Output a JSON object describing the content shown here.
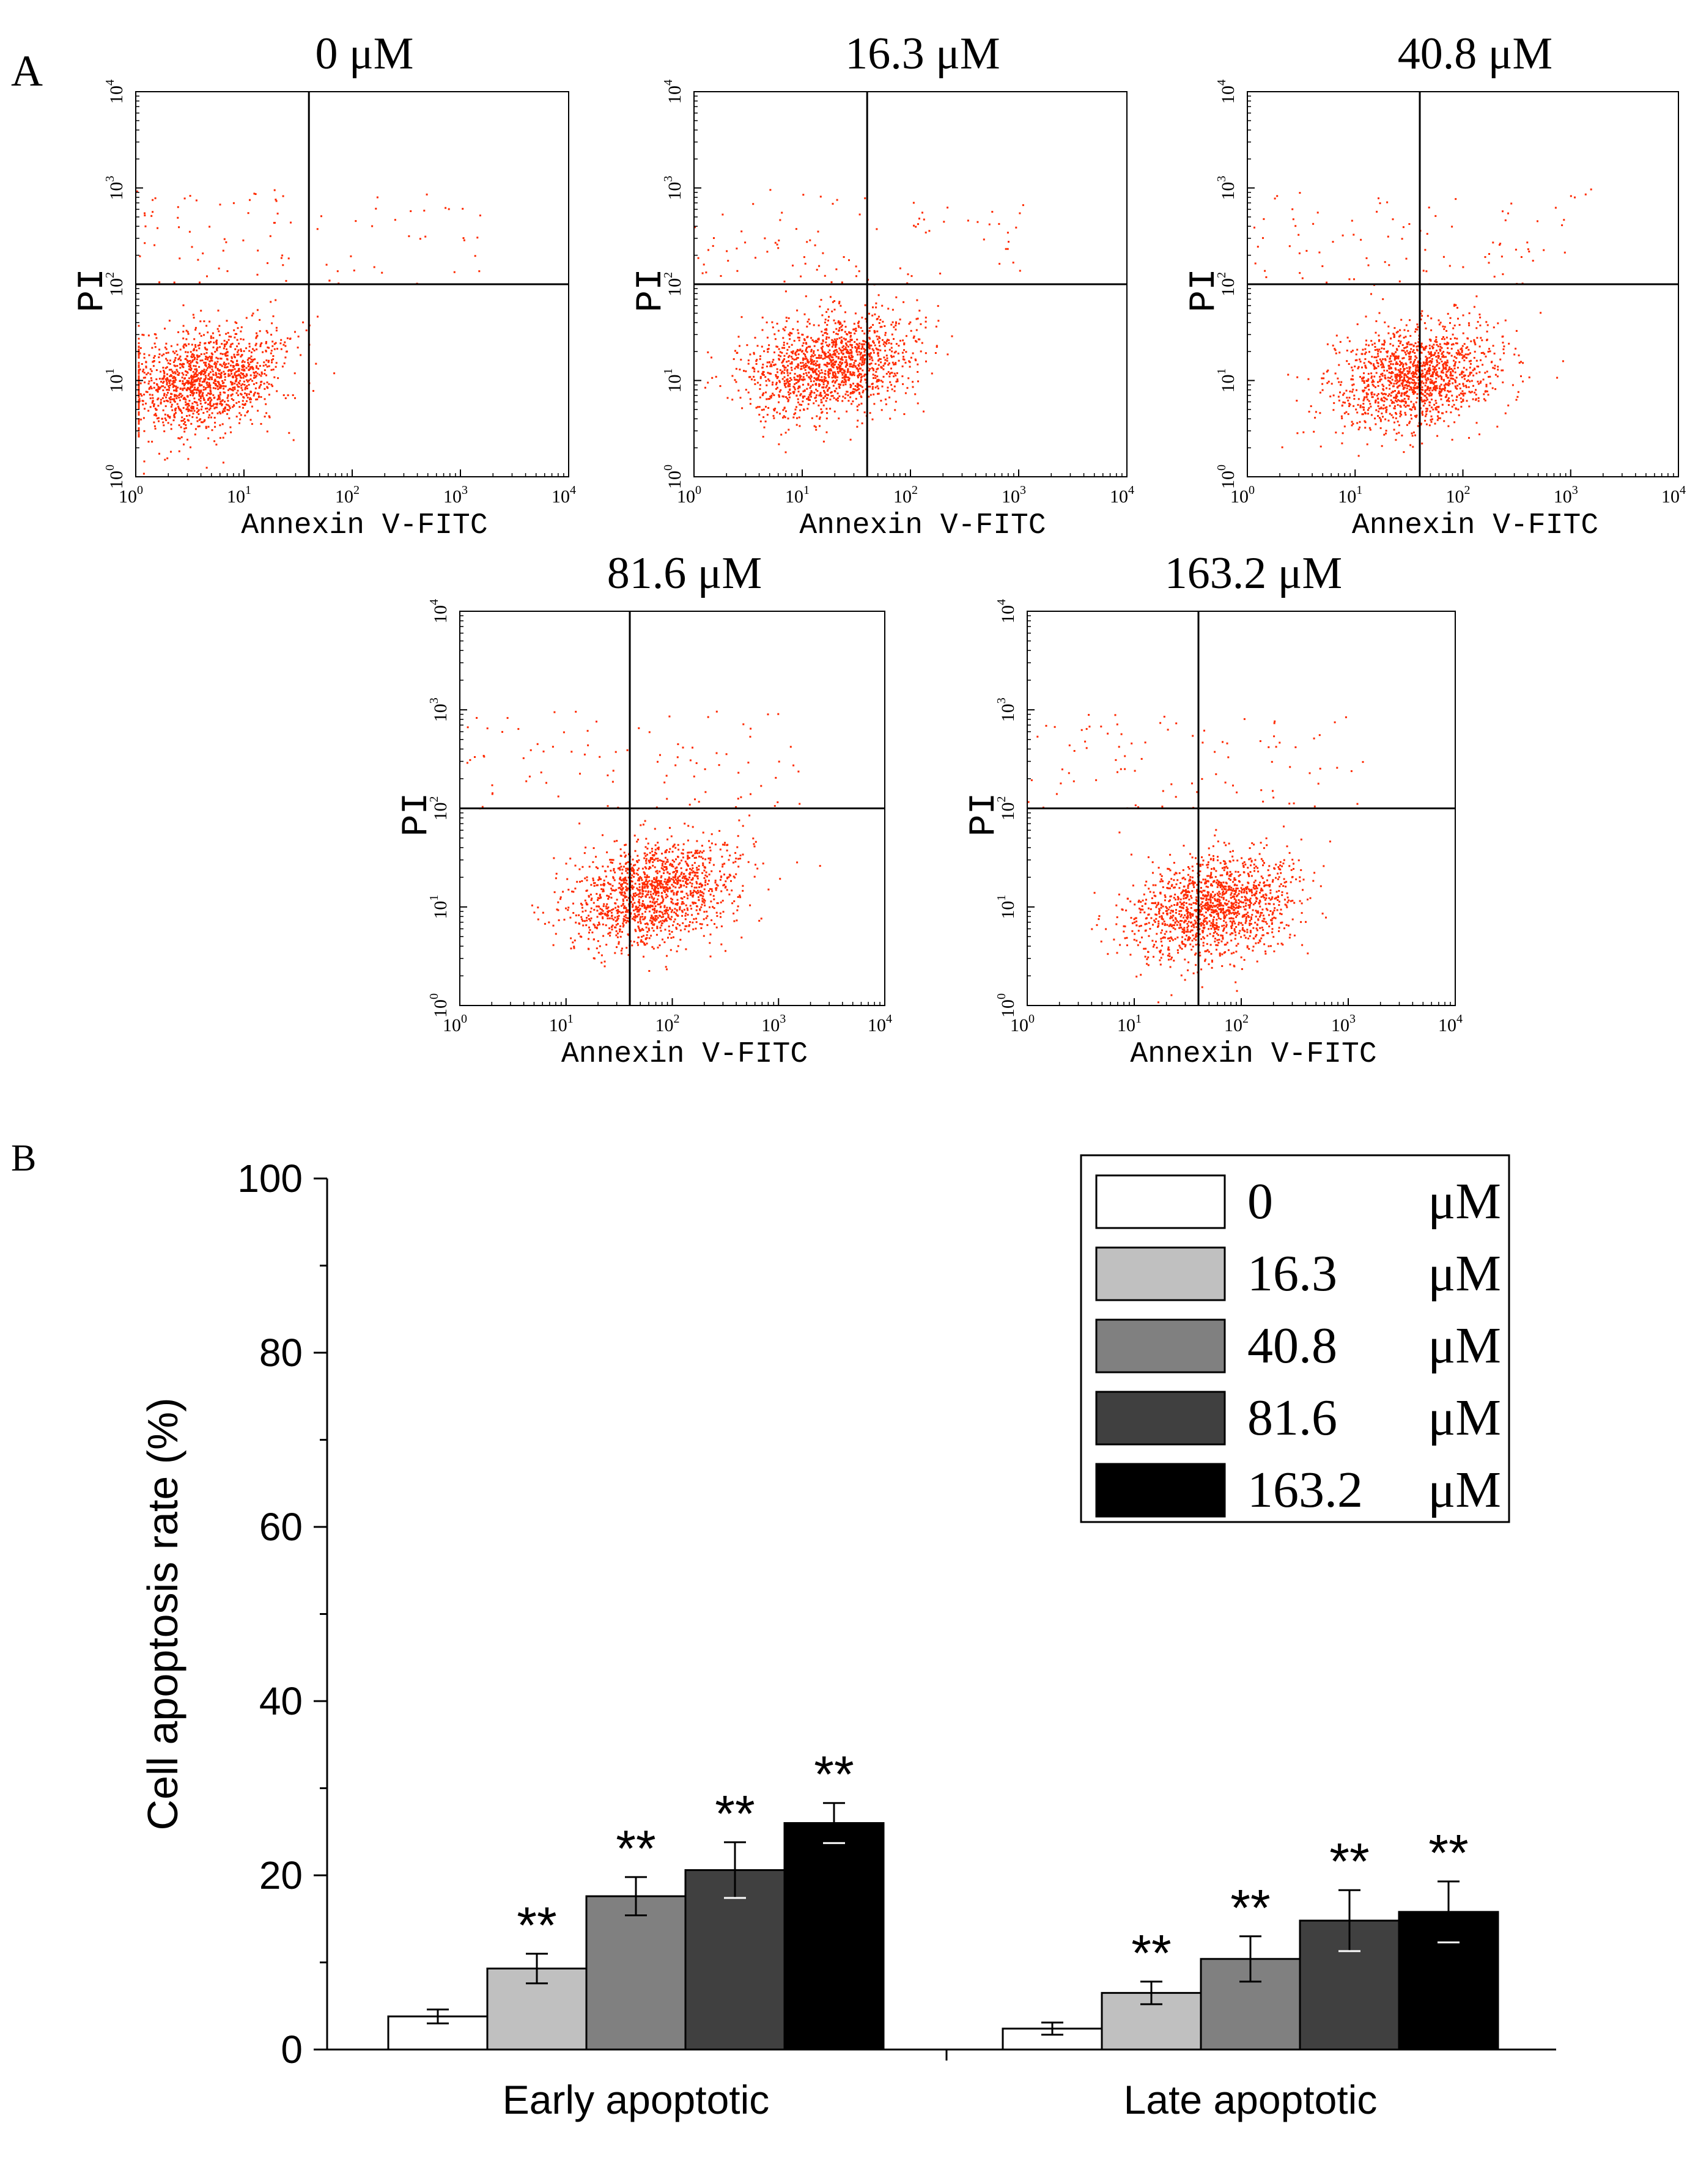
{
  "panel_a": {
    "label": "A",
    "plots": [
      {
        "title": "0 μM",
        "xlabel": "Annexin V-FITC",
        "ylabel": "PI",
        "center": [
          0.6,
          1.0
        ]
      },
      {
        "title": "16.3 μM",
        "xlabel": "Annexin V-FITC",
        "ylabel": "PI",
        "center": [
          1.25,
          1.15
        ]
      },
      {
        "title": "40.8 μM",
        "xlabel": "Annexin V-FITC",
        "ylabel": "PI",
        "center": [
          1.55,
          1.05
        ]
      },
      {
        "title": "81.6 μM",
        "xlabel": "Annexin V-FITC",
        "ylabel": "PI",
        "center": [
          1.8,
          1.15
        ]
      },
      {
        "title": "163.2 μM",
        "xlabel": "Annexin V-FITC",
        "ylabel": "PI",
        "center": [
          1.75,
          1.0
        ]
      }
    ],
    "ticks": [
      "10",
      "10",
      "10",
      "10",
      "10"
    ],
    "exponents": [
      "0",
      "1",
      "2",
      "3",
      "4"
    ],
    "gate_x": 1.6,
    "gate_y": 2.0
  },
  "panel_b": {
    "label": "B"
  },
  "chart_data": [
    {
      "type": "scatter",
      "description": "Flow cytometry Annexin V-FITC / PI dot plots (panel A)",
      "x_axis": "Annexin V-FITC (log, 10^0–10^4)",
      "y_axis": "PI (log, 10^0–10^4)",
      "xlim": [
        0,
        4
      ],
      "ylim": [
        0,
        4
      ],
      "series": [
        {
          "name": "0 μM"
        },
        {
          "name": "16.3 μM"
        },
        {
          "name": "40.8 μM"
        },
        {
          "name": "81.6 μM"
        },
        {
          "name": "163.2 μM"
        }
      ]
    },
    {
      "type": "bar",
      "title": "",
      "xlabel": "",
      "ylabel": "Cell apoptosis rate (%)",
      "ylim": [
        0,
        100
      ],
      "yticks": [
        "0",
        "20",
        "40",
        "60",
        "80",
        "100"
      ],
      "categories": [
        "Early apoptotic",
        "Late apoptotic"
      ],
      "series": [
        {
          "name": "0",
          "unit": "μM",
          "color": "#ffffff",
          "values": [
            3.8,
            2.4
          ],
          "errors": [
            0.8,
            0.7
          ],
          "sig": [
            "",
            ""
          ]
        },
        {
          "name": "16.3",
          "unit": "μM",
          "color": "#c0c0c0",
          "values": [
            9.3,
            6.5
          ],
          "errors": [
            1.7,
            1.3
          ],
          "sig": [
            "**",
            "**"
          ]
        },
        {
          "name": "40.8",
          "unit": "μM",
          "color": "#808080",
          "values": [
            17.6,
            10.4
          ],
          "errors": [
            2.2,
            2.6
          ],
          "sig": [
            "**",
            "**"
          ]
        },
        {
          "name": "81.6",
          "unit": "μM",
          "color": "#404040",
          "values": [
            20.6,
            14.8
          ],
          "errors": [
            3.2,
            3.5
          ],
          "sig": [
            "**",
            "**"
          ]
        },
        {
          "name": "163.2",
          "unit": "μM",
          "color": "#000000",
          "values": [
            26.0,
            15.8
          ],
          "errors": [
            2.3,
            3.5
          ],
          "sig": [
            "**",
            "**"
          ]
        }
      ]
    }
  ]
}
